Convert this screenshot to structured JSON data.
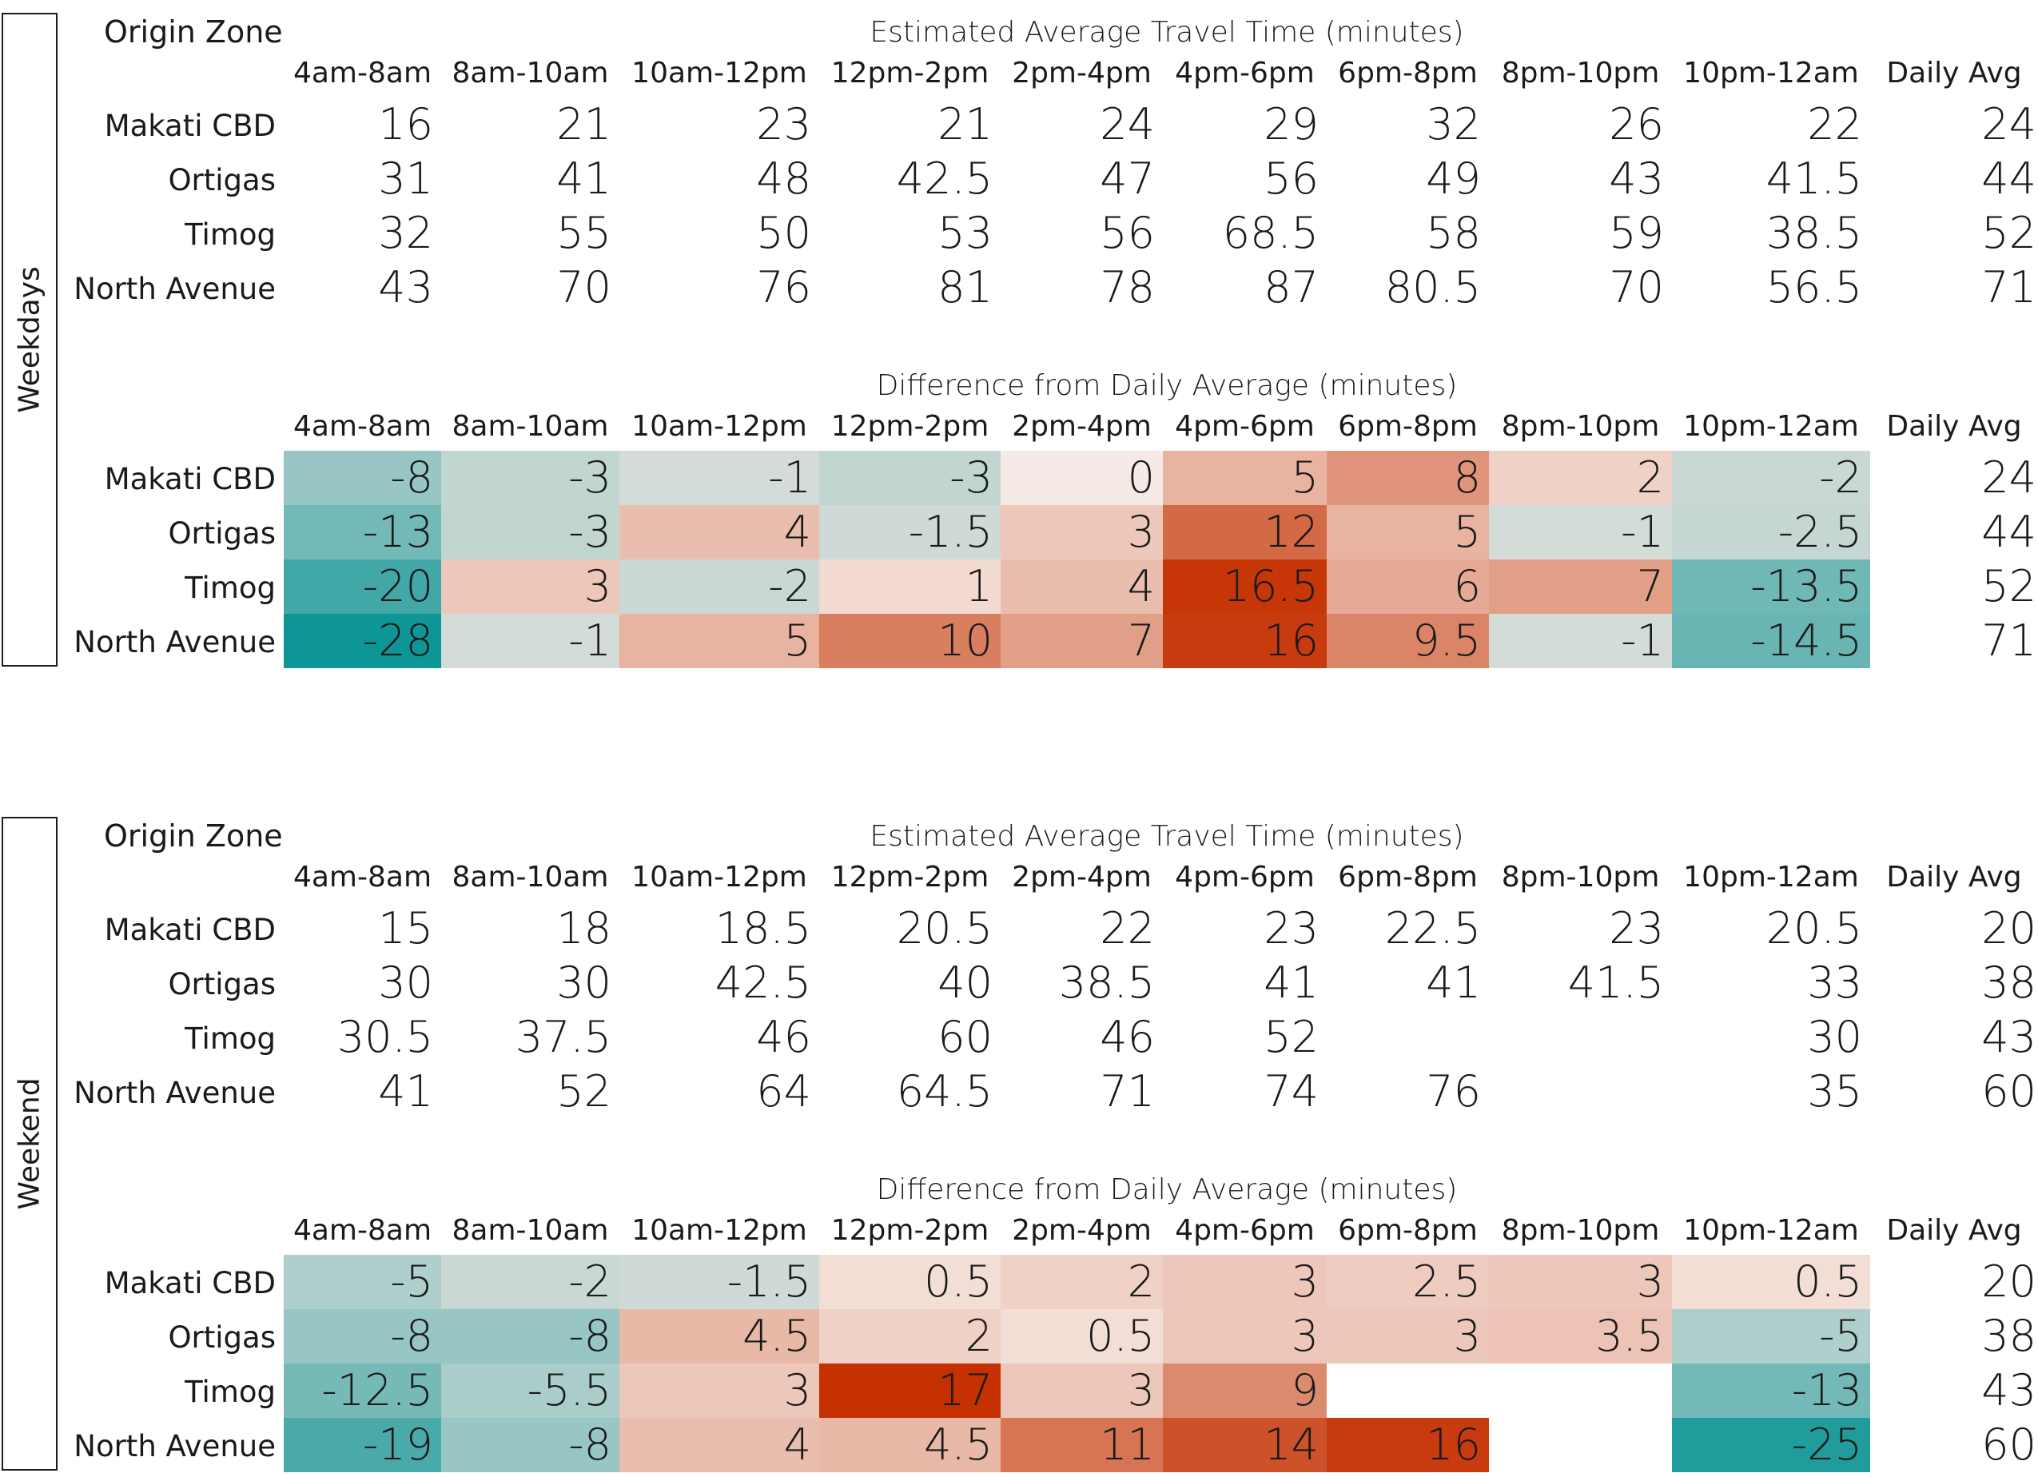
{
  "chart_data": {
    "type": "table",
    "columns": [
      "4am-8am",
      "8am-10am",
      "10am-12pm",
      "12pm-2pm",
      "2pm-4pm",
      "4pm-6pm",
      "6pm-8pm",
      "8pm-10pm",
      "10pm-12am",
      "Daily Avg"
    ],
    "rows": [
      "Makati CBD",
      "Ortigas",
      "Timog",
      "North Avenue"
    ],
    "color_scale": {
      "negative": "#0e9595",
      "neutral": "#e0e0dc",
      "positive": "#c43000",
      "abs_max": 28
    },
    "sections": [
      {
        "label": "Weekdays",
        "origin_label": "Origin Zone",
        "travel_title": "Estimated Average Travel Time (minutes)",
        "diff_title": "Difference from Daily Average (minutes)",
        "travel": [
          [
            "16",
            "21",
            "23",
            "21",
            "24",
            "29",
            "32",
            "26",
            "22",
            "24"
          ],
          [
            "31",
            "41",
            "48",
            "42.5",
            "47",
            "56",
            "49",
            "43",
            "41.5",
            "44"
          ],
          [
            "32",
            "55",
            "50",
            "53",
            "56",
            "68.5",
            "58",
            "59",
            "38.5",
            "52"
          ],
          [
            "43",
            "70",
            "76",
            "81",
            "78",
            "87",
            "80.5",
            "70",
            "56.5",
            "71"
          ]
        ],
        "diff": [
          [
            "-8",
            "-3",
            "-1",
            "-3",
            "0",
            "5",
            "8",
            "2",
            "-2",
            "24"
          ],
          [
            "-13",
            "-3",
            "4",
            "-1.5",
            "3",
            "12",
            "5",
            "-1",
            "-2.5",
            "44"
          ],
          [
            "-20",
            "3",
            "-2",
            "1",
            "4",
            "16.5",
            "6",
            "7",
            "-13.5",
            "52"
          ],
          [
            "-28",
            "-1",
            "5",
            "10",
            "7",
            "16",
            "9.5",
            "-1",
            "-14.5",
            "71"
          ]
        ]
      },
      {
        "label": "Weekend",
        "origin_label": "Origin Zone",
        "travel_title": "Estimated Average Travel Time (minutes)",
        "diff_title": "Difference from Daily Average (minutes)",
        "travel": [
          [
            "15",
            "18",
            "18.5",
            "20.5",
            "22",
            "23",
            "22.5",
            "23",
            "20.5",
            "20"
          ],
          [
            "30",
            "30",
            "42.5",
            "40",
            "38.5",
            "41",
            "41",
            "41.5",
            "33",
            "38"
          ],
          [
            "30.5",
            "37.5",
            "46",
            "60",
            "46",
            "52",
            "",
            "",
            "30",
            "43"
          ],
          [
            "41",
            "52",
            "64",
            "64.5",
            "71",
            "74",
            "76",
            "",
            "35",
            "60"
          ]
        ],
        "diff": [
          [
            "-5",
            "-2",
            "-1.5",
            "0.5",
            "2",
            "3",
            "2.5",
            "3",
            "0.5",
            "20"
          ],
          [
            "-8",
            "-8",
            "4.5",
            "2",
            "0.5",
            "3",
            "3",
            "3.5",
            "-5",
            "38"
          ],
          [
            "-12.5",
            "-5.5",
            "3",
            "17",
            "3",
            "9",
            "",
            "",
            "-13",
            "43"
          ],
          [
            "-19",
            "-8",
            "4",
            "4.5",
            "11",
            "14",
            "16",
            "",
            "-25",
            "60"
          ]
        ]
      }
    ]
  }
}
